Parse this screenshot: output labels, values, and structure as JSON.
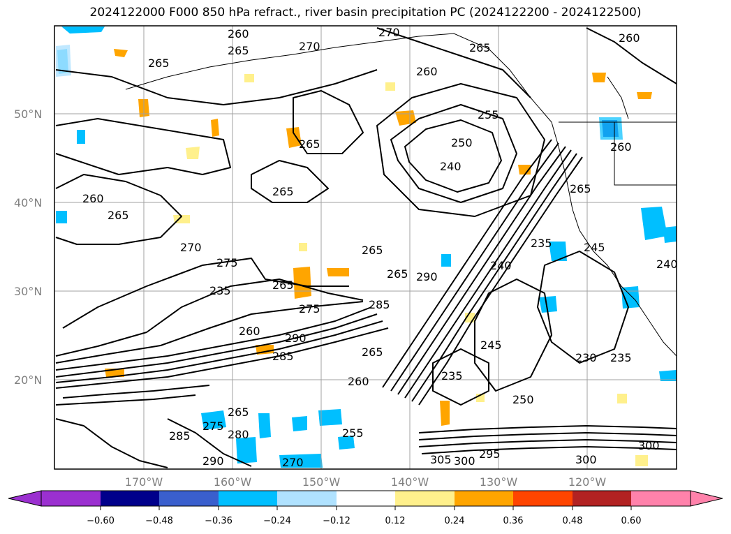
{
  "title": "2024122000 F000 850 hPa refract., river basin precipitation PC (2024122200 - 2024122500)",
  "lat_labels": [
    "50°N",
    "40°N",
    "30°N",
    "20°N"
  ],
  "lon_labels": [
    "170°W",
    "160°W",
    "150°W",
    "140°W",
    "130°W",
    "120°W"
  ],
  "colorbar": {
    "ticks": [
      "−0.60",
      "−0.48",
      "−0.36",
      "−0.24",
      "−0.12",
      "0.12",
      "0.24",
      "0.36",
      "0.48",
      "0.60"
    ],
    "colors": [
      "#9b30d0",
      "#00008b",
      "#3a5fcd",
      "#00bfff",
      "#b0e2ff",
      "#ffffff",
      "#fff08c",
      "#ffa500",
      "#ff4500",
      "#b22222",
      "#ff82ab",
      "#ff82ab"
    ],
    "under_color": "#9b30d0",
    "over_color": "#ff82ab"
  },
  "contour_labels": [
    {
      "text": "260"
    },
    {
      "text": "270"
    },
    {
      "text": "265"
    },
    {
      "text": "270"
    },
    {
      "text": "265"
    },
    {
      "text": "260"
    },
    {
      "text": "265"
    },
    {
      "text": "260"
    },
    {
      "text": "265"
    },
    {
      "text": "255"
    },
    {
      "text": "250"
    },
    {
      "text": "240"
    },
    {
      "text": "265"
    },
    {
      "text": "260"
    },
    {
      "text": "265"
    },
    {
      "text": "260"
    },
    {
      "text": "265"
    },
    {
      "text": "270"
    },
    {
      "text": "275"
    },
    {
      "text": "265"
    },
    {
      "text": "235"
    },
    {
      "text": "265"
    },
    {
      "text": "265"
    },
    {
      "text": "290"
    },
    {
      "text": "285"
    },
    {
      "text": "275"
    },
    {
      "text": "260"
    },
    {
      "text": "290"
    },
    {
      "text": "285"
    },
    {
      "text": "265"
    },
    {
      "text": "240"
    },
    {
      "text": "235"
    },
    {
      "text": "245"
    },
    {
      "text": "245"
    },
    {
      "text": "235"
    },
    {
      "text": "230"
    },
    {
      "text": "235"
    },
    {
      "text": "250"
    },
    {
      "text": "255"
    },
    {
      "text": "265"
    },
    {
      "text": "275"
    },
    {
      "text": "280"
    },
    {
      "text": "285"
    },
    {
      "text": "290"
    },
    {
      "text": "270"
    },
    {
      "text": "300"
    },
    {
      "text": "305"
    },
    {
      "text": "295"
    },
    {
      "text": "300"
    },
    {
      "text": "300"
    },
    {
      "text": "260"
    },
    {
      "text": "240"
    }
  ]
}
